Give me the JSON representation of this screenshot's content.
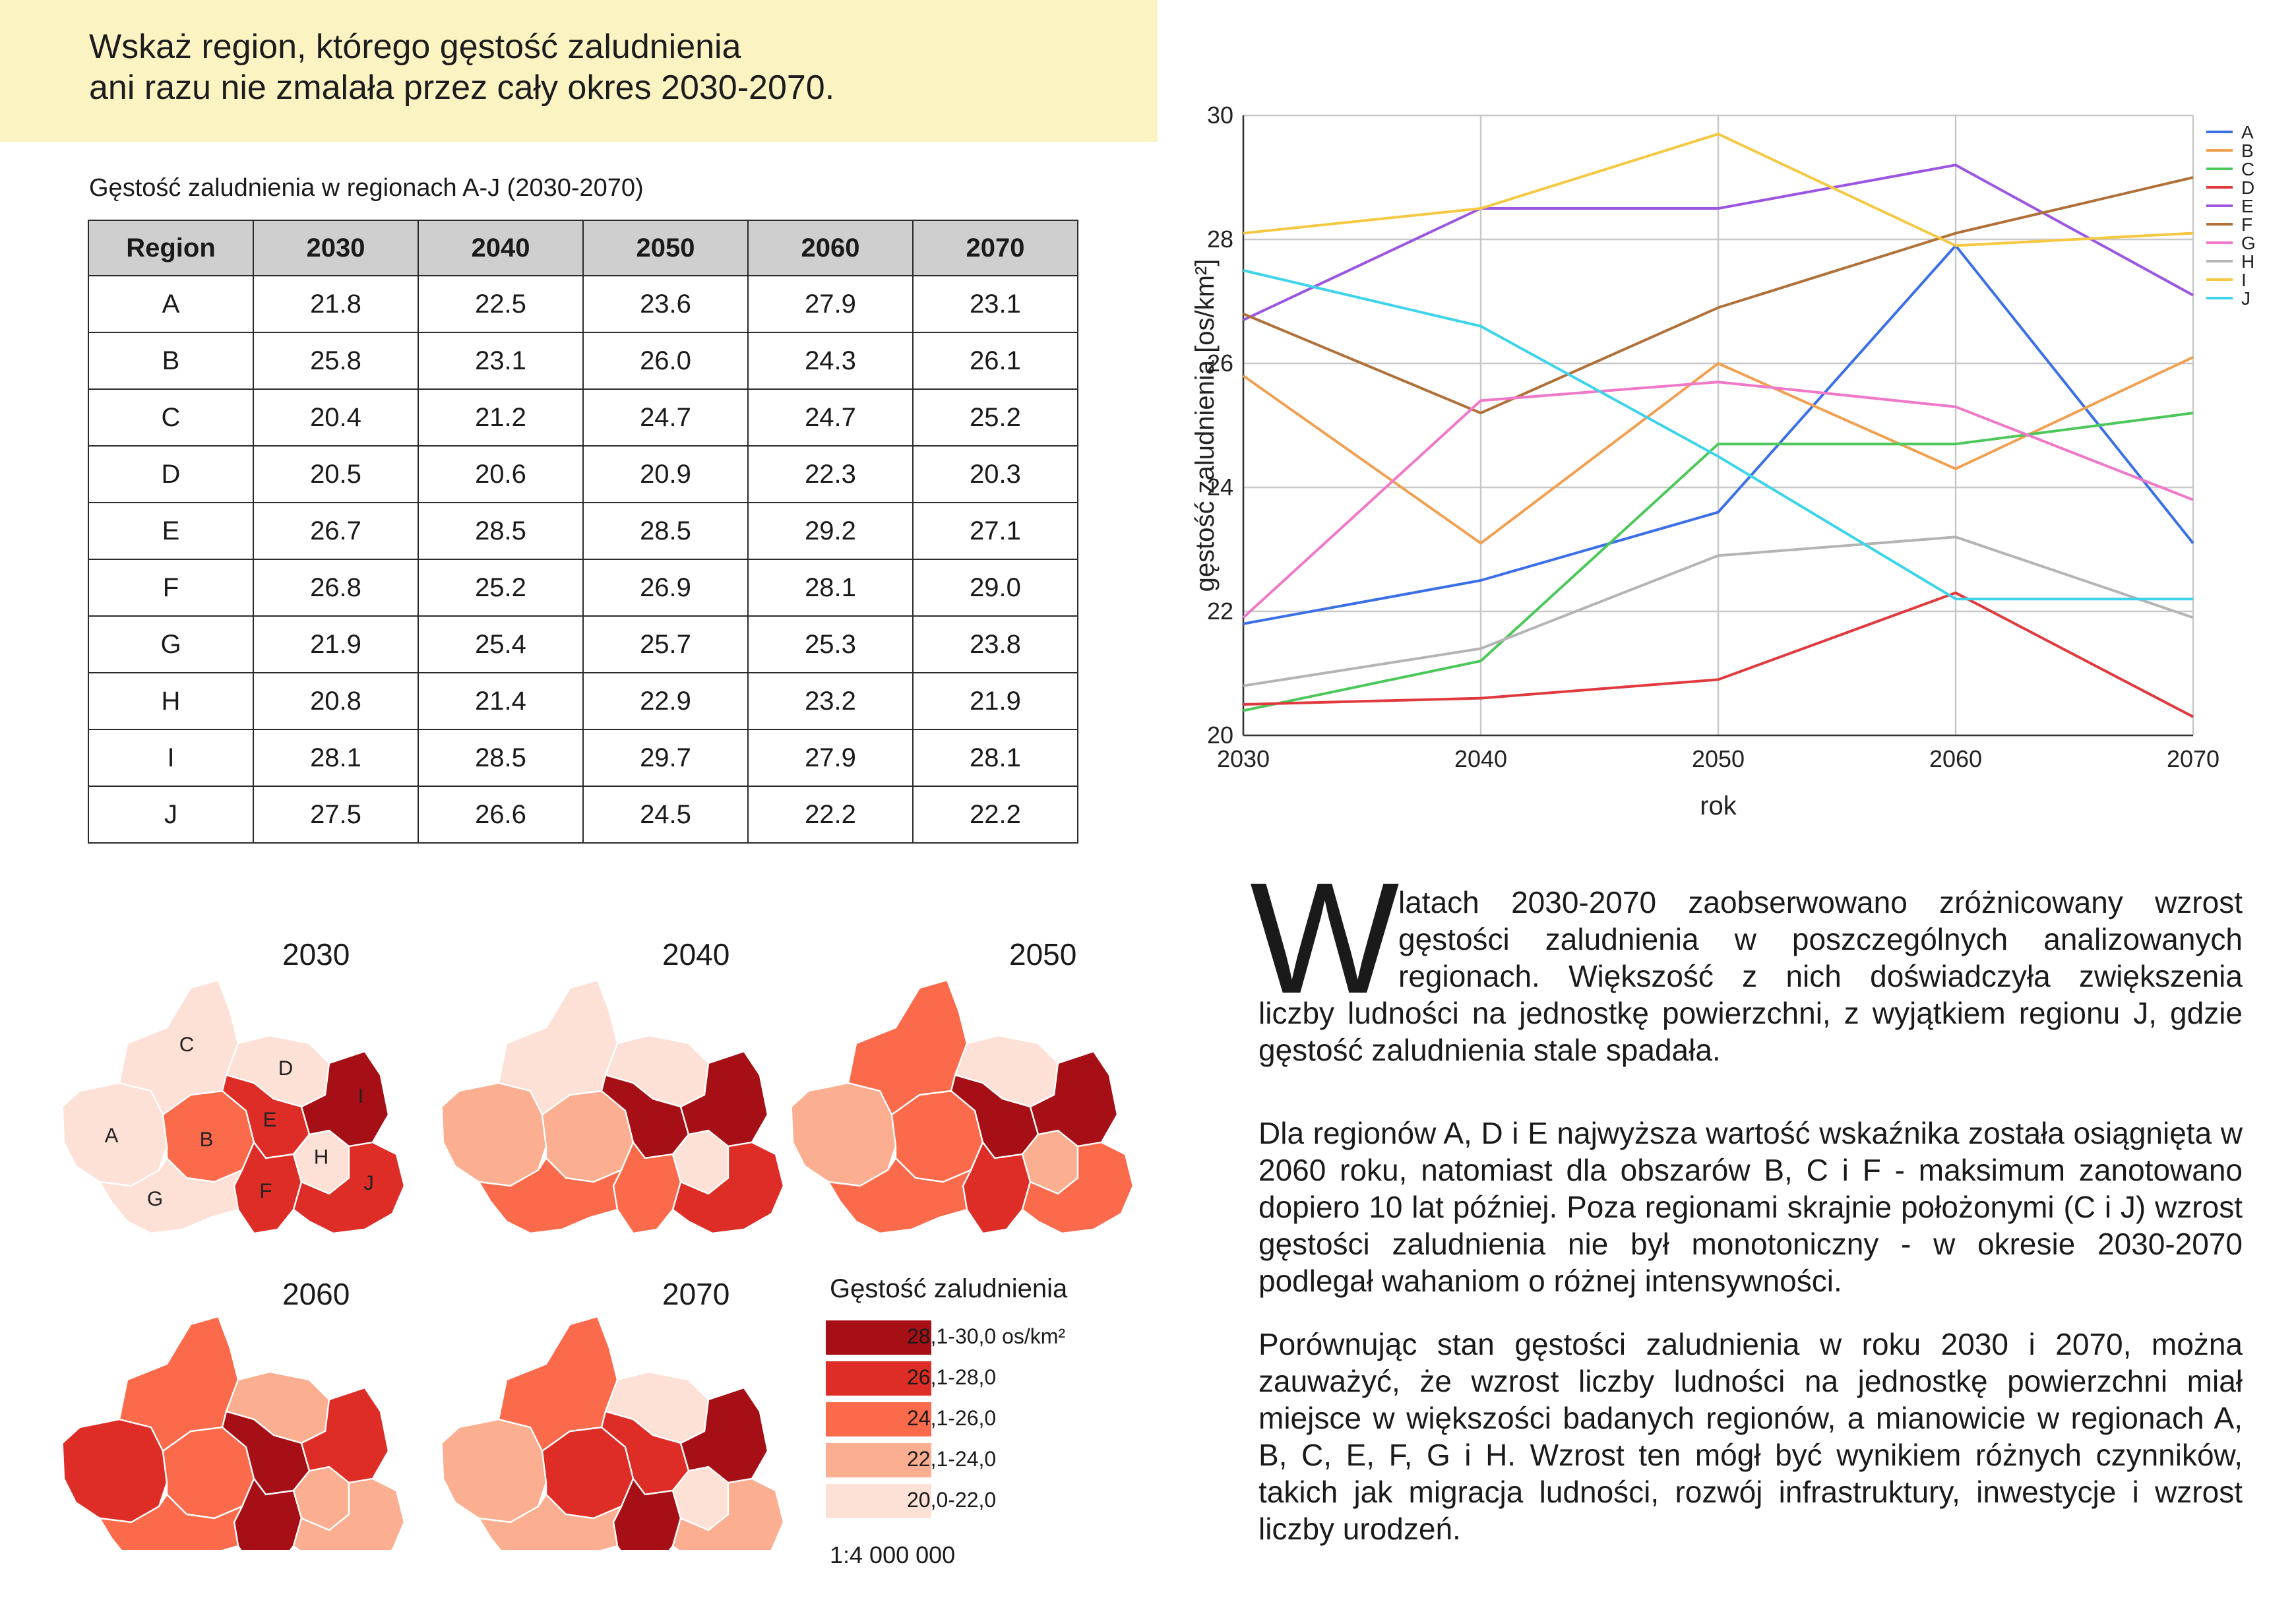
{
  "question": {
    "line1": "Wskaż region, którego gęstość zaludnienia",
    "line2": "ani razu nie zmalała przez cały okres 2030-2070."
  },
  "table": {
    "title": "Gęstość zaludnienia w regionach A-J (2030-2070)",
    "headers": [
      "Region",
      "2030",
      "2040",
      "2050",
      "2060",
      "2070"
    ],
    "rows": [
      [
        "A",
        "21.8",
        "22.5",
        "23.6",
        "27.9",
        "23.1"
      ],
      [
        "B",
        "25.8",
        "23.1",
        "26.0",
        "24.3",
        "26.1"
      ],
      [
        "C",
        "20.4",
        "21.2",
        "24.7",
        "24.7",
        "25.2"
      ],
      [
        "D",
        "20.5",
        "20.6",
        "20.9",
        "22.3",
        "20.3"
      ],
      [
        "E",
        "26.7",
        "28.5",
        "28.5",
        "29.2",
        "27.1"
      ],
      [
        "F",
        "26.8",
        "25.2",
        "26.9",
        "28.1",
        "29.0"
      ],
      [
        "G",
        "21.9",
        "25.4",
        "25.7",
        "25.3",
        "23.8"
      ],
      [
        "H",
        "20.8",
        "21.4",
        "22.9",
        "23.2",
        "21.9"
      ],
      [
        "I",
        "28.1",
        "28.5",
        "29.7",
        "27.9",
        "28.1"
      ],
      [
        "J",
        "27.5",
        "26.6",
        "24.5",
        "22.2",
        "22.2"
      ]
    ]
  },
  "chart_data": {
    "type": "line",
    "x": [
      2030,
      2040,
      2050,
      2060,
      2070
    ],
    "xlabel": "rok",
    "ylabel": "gęstość zaludnienia [os/km²]",
    "ylim": [
      20,
      30
    ],
    "yticks": [
      20,
      22,
      24,
      26,
      28,
      30
    ],
    "grid": true,
    "legend": "right",
    "series": [
      {
        "name": "A",
        "color": "#3a6fe8",
        "values": [
          21.8,
          22.5,
          23.6,
          27.9,
          23.1
        ]
      },
      {
        "name": "B",
        "color": "#f0a050",
        "values": [
          25.8,
          23.1,
          26.0,
          24.3,
          26.1
        ]
      },
      {
        "name": "C",
        "color": "#4cc85a",
        "values": [
          20.4,
          21.2,
          24.7,
          24.7,
          25.2
        ]
      },
      {
        "name": "D",
        "color": "#e03a3e",
        "values": [
          20.5,
          20.6,
          20.9,
          22.3,
          20.3
        ]
      },
      {
        "name": "E",
        "color": "#9b55e0",
        "values": [
          26.7,
          28.5,
          28.5,
          29.2,
          27.1
        ]
      },
      {
        "name": "F",
        "color": "#b0703a",
        "values": [
          26.8,
          25.2,
          26.9,
          28.1,
          29.0
        ]
      },
      {
        "name": "G",
        "color": "#f078c8",
        "values": [
          21.9,
          25.4,
          25.7,
          25.3,
          23.8
        ]
      },
      {
        "name": "H",
        "color": "#b4b4b4",
        "values": [
          20.8,
          21.4,
          22.9,
          23.2,
          21.9
        ]
      },
      {
        "name": "I",
        "color": "#f5c842",
        "values": [
          28.1,
          28.5,
          29.7,
          27.9,
          28.1
        ]
      },
      {
        "name": "J",
        "color": "#3dd4ea",
        "values": [
          27.5,
          26.6,
          24.5,
          22.2,
          22.2
        ]
      }
    ]
  },
  "maps": {
    "years": [
      "2030",
      "2040",
      "2050",
      "2060",
      "2070"
    ],
    "region_labels": [
      "A",
      "B",
      "C",
      "D",
      "E",
      "F",
      "G",
      "H",
      "I",
      "J"
    ],
    "legend_title": "Gęstość zaludnienia",
    "classes": [
      {
        "label": "28,1-30,0 os/km²",
        "color": "#a50f15"
      },
      {
        "label": "26,1-28,0",
        "color": "#de2d26"
      },
      {
        "label": "24,1-26,0",
        "color": "#fb6a4a"
      },
      {
        "label": "22,1-24,0",
        "color": "#fcae91"
      },
      {
        "label": "20,0-22,0",
        "color": "#fde0d6"
      }
    ],
    "scale": "1:4 000 000"
  },
  "text": {
    "dropcap": "W",
    "p1_indented": "latach 2030-2070 zaobserwowano zróżnicowany wzrost gęstości zaludnienia w poszczególnych analizowanych regionach. Większość z nich doświadczyła zwiększenia",
    "p1_rest": "liczby ludności na jednostkę powierzchni, z wyjątkiem regionu J, gdzie gęstość zaludnienia stale spadała.",
    "p2": "Dla regionów A, D i E najwyższa wartość wskaźnika została osiągnięta w 2060 roku, natomiast dla obszarów B, C i F - maksimum zanotowano dopiero 10 lat później. Poza regionami skrajnie położonymi (C i J) wzrost gęstości zaludnienia nie był monotoniczny - w okresie 2030-2070 podlegał wahaniom o różnej intensywności.",
    "p3": "Porównując stan gęstości zaludnienia w roku 2030 i 2070, można zauważyć, że wzrost liczby ludności na jednostkę powierzchni miał miejsce w większości badanych regionów, a mianowicie w regionach A, B, C, E, F, G i H. Wzrost ten mógł być wynikiem różnych czynników, takich jak migracja ludności, rozwój infrastruktury, inwestycje i wzrost liczby urodzeń."
  }
}
